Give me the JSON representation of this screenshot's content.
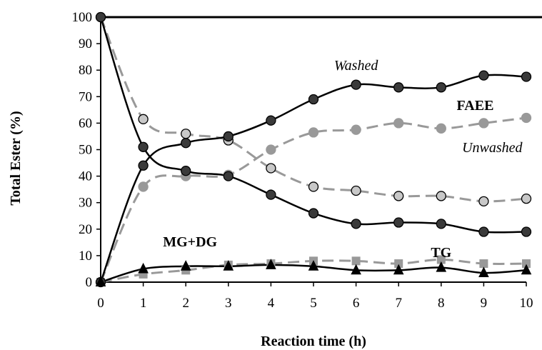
{
  "chart_data": {
    "type": "line",
    "xlabel": "Reaction time (h)",
    "ylabel": "Total Ester (%)",
    "xlim": [
      0,
      10
    ],
    "ylim": [
      0,
      100
    ],
    "x_ticks": [
      "0",
      "1",
      "2",
      "3",
      "4",
      "5",
      "6",
      "7",
      "8",
      "9",
      "10"
    ],
    "y_ticks": [
      "0",
      "10",
      "20",
      "30",
      "40",
      "50",
      "60",
      "70",
      "80",
      "90",
      "100"
    ],
    "grid": false,
    "x": [
      0,
      1,
      2,
      3,
      4,
      5,
      6,
      7,
      8,
      9,
      10
    ],
    "series": [
      {
        "group": "Washed",
        "component": "FAEE",
        "marker": "circle",
        "color": "#000000",
        "fill": "#3a3a3a",
        "dash": "solid",
        "values": [
          0,
          44,
          52.5,
          55,
          61,
          69,
          74.5,
          73.5,
          73.5,
          78,
          77.5
        ]
      },
      {
        "group": "Washed",
        "component": "TG",
        "marker": "circle",
        "color": "#000000",
        "fill": "#3a3a3a",
        "dash": "solid",
        "values": [
          100,
          51,
          42,
          40,
          33,
          26,
          22,
          22.5,
          22,
          19,
          19
        ]
      },
      {
        "group": "Washed",
        "component": "MG+DG",
        "marker": "triangle",
        "color": "#000000",
        "fill": "#000000",
        "dash": "solid",
        "values": [
          0,
          5,
          6,
          6,
          6.5,
          6,
          4.5,
          4.5,
          5.5,
          3.5,
          4.5
        ]
      },
      {
        "group": "Unwashed",
        "component": "FAEE",
        "marker": "circle",
        "color": "#999999",
        "fill": "#999999",
        "dash": "dashed",
        "values": [
          0,
          36,
          40,
          40.5,
          50,
          56.5,
          57.5,
          60,
          58,
          60,
          62
        ]
      },
      {
        "group": "Unwashed",
        "component": "TG",
        "marker": "circle",
        "color": "#999999",
        "fill": "#c8c8c8",
        "dash": "dashed",
        "values": [
          100,
          61.5,
          56,
          53.5,
          43,
          36,
          34.5,
          32.5,
          32.5,
          30.5,
          31.5
        ]
      },
      {
        "group": "Unwashed",
        "component": "MG+DG",
        "marker": "square",
        "color": "#999999",
        "fill": "#999999",
        "dash": "dashed",
        "values": [
          0,
          3,
          4.5,
          6.5,
          7,
          8,
          8,
          7,
          8.5,
          7,
          7
        ]
      }
    ],
    "annotations": [
      {
        "text": "Washed",
        "x": 6.0,
        "y": 80,
        "style": "italic"
      },
      {
        "text": "FAEE",
        "x": 8.8,
        "y": 65,
        "style": "bold"
      },
      {
        "text": "Unwashed",
        "x": 9.2,
        "y": 49,
        "style": "italic"
      },
      {
        "text": "MG+DG",
        "x": 2.1,
        "y": 13.5,
        "style": "bold"
      },
      {
        "text": "TG",
        "x": 8.0,
        "y": 9.5,
        "style": "bold"
      }
    ]
  }
}
